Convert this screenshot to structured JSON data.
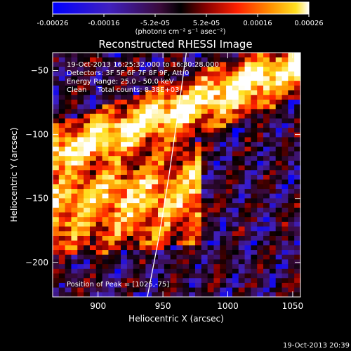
{
  "chart_data": {
    "type": "heatmap",
    "title": "Reconstructed RHESSI Image",
    "xlabel": "Heliocentric X (arcsec)",
    "ylabel": "Heliocentric Y (arcsec)",
    "xlim": [
      865,
      1056
    ],
    "ylim": [
      -227,
      -36
    ],
    "xticks": [
      900,
      950,
      1000,
      1050
    ],
    "yticks": [
      -50,
      -100,
      -150,
      -200
    ],
    "colorbar": {
      "range": [
        -0.00026,
        0.00026
      ],
      "tick_labels": [
        "-0.00026",
        "-0.00016",
        "-5.2e-05",
        "5.2e-05",
        "0.00016",
        "0.00026"
      ],
      "unit_label": "(photons cm⁻² s⁻¹ asec⁻²)",
      "colormap": [
        "#0000ff",
        "#4020c0",
        "#3a0a3a",
        "#000000",
        "#8a0000",
        "#ff2000",
        "#ff9000",
        "#ffe020",
        "#ffffff"
      ]
    },
    "annotations": [
      "19-Oct-2013 16:25:32.000 to 16:30:28.000",
      "Detectors: 3F 5F 6F 7F 8F 9F, Att 0",
      "Energy Range: 25.0 - 50.0 keV",
      "Clean     Total counts: 8.38E+03"
    ],
    "peak_label": "Position of Peak = [1025,-75]",
    "peak_position": [
      1025,
      -75
    ],
    "limb_curve": {
      "x": [
        938,
        947,
        955,
        962,
        968
      ],
      "y": [
        -227,
        -180,
        -130,
        -80,
        -36
      ]
    },
    "emission_bands": [
      {
        "x_from": 865,
        "x_to": 1056,
        "y_start": -118,
        "y_end": -45,
        "width": 32,
        "peak": 1.0
      },
      {
        "x_from": 865,
        "x_to": 960,
        "y_start": -155,
        "y_end": -140,
        "width": 55,
        "peak": 0.7
      }
    ],
    "grid": false
  },
  "footer": {
    "timestamp": "19-Oct-2013 20:39"
  }
}
